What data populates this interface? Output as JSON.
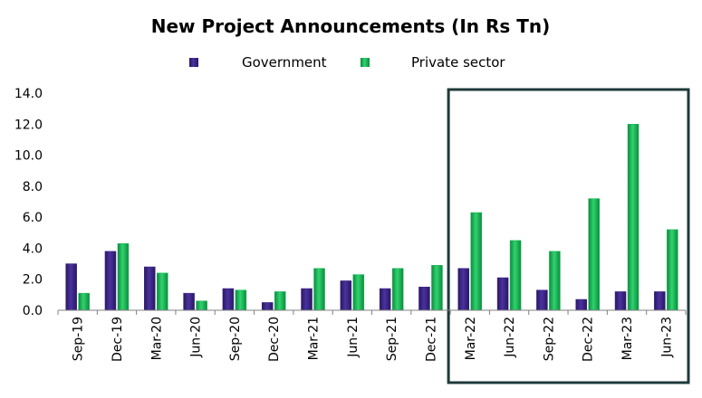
{
  "chart_data": {
    "type": "bar",
    "title": "New Project Announcements (In Rs Tn)",
    "categories": [
      "Sep-19",
      "Dec-19",
      "Mar-20",
      "Jun-20",
      "Sep-20",
      "Dec-20",
      "Mar-21",
      "Jun-21",
      "Sep-21",
      "Dec-21",
      "Mar-22",
      "Jun-22",
      "Sep-22",
      "Dec-22",
      "Mar-23",
      "Jun-23"
    ],
    "series": [
      {
        "name": "Government",
        "color": "#3b2483",
        "values": [
          3.0,
          3.8,
          2.8,
          1.1,
          1.4,
          0.5,
          1.4,
          1.9,
          1.4,
          1.5,
          2.7,
          2.1,
          1.3,
          0.7,
          1.2,
          1.2
        ]
      },
      {
        "name": "Private sector",
        "color": "#16b553",
        "values": [
          1.1,
          4.3,
          2.4,
          0.6,
          1.3,
          1.2,
          2.7,
          2.3,
          2.7,
          2.9,
          6.3,
          4.5,
          3.8,
          7.2,
          12.0,
          5.2
        ]
      }
    ],
    "yticks": [
      "0.0",
      "2.0",
      "4.0",
      "6.0",
      "8.0",
      "10.0",
      "12.0",
      "14.0"
    ],
    "ylim": [
      0,
      14
    ],
    "xlabel": "",
    "ylabel": "",
    "legend_position": "top-center",
    "grid": false,
    "highlight_range": [
      "Mar-22",
      "Jun-23"
    ],
    "highlight_border_color": "#1f3a3a"
  }
}
